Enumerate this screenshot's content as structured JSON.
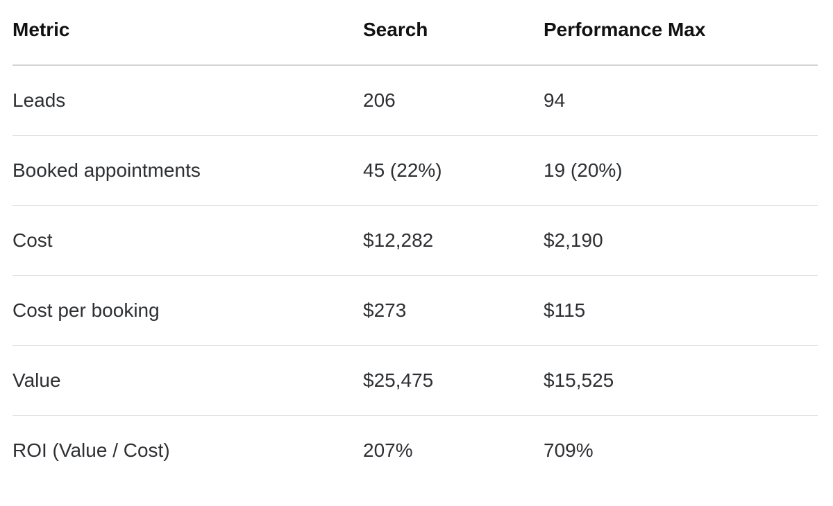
{
  "table": {
    "headers": [
      "Metric",
      "Search",
      "Performance Max"
    ],
    "rows": [
      [
        "Leads",
        "206",
        "94"
      ],
      [
        "Booked appointments",
        "45 (22%)",
        "19 (20%)"
      ],
      [
        "Cost",
        "$12,282",
        "$2,190"
      ],
      [
        "Cost per booking",
        "$273",
        "$115"
      ],
      [
        "Value",
        "$25,475",
        "$15,525"
      ],
      [
        "ROI (Value / Cost)",
        "207%",
        "709%"
      ]
    ]
  }
}
